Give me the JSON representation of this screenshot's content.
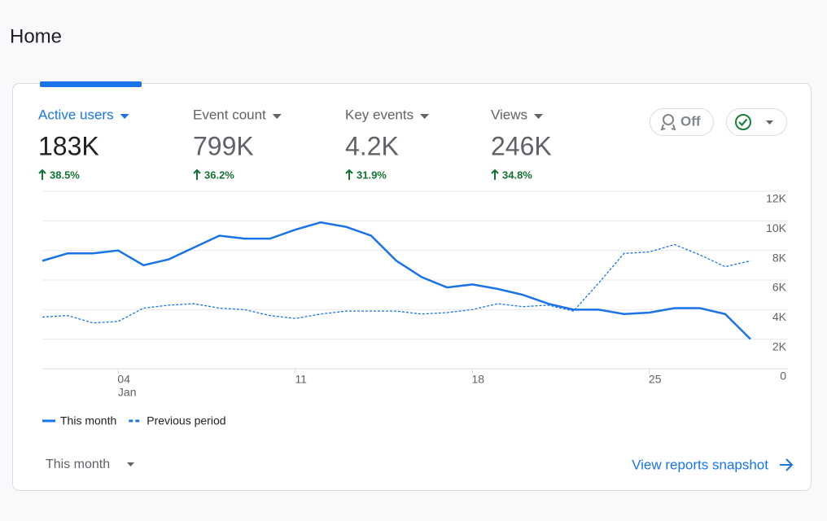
{
  "header": {
    "title": "Home"
  },
  "metrics": [
    {
      "label": "Active users",
      "value": "183K",
      "change": "38.5%"
    },
    {
      "label": "Event count",
      "value": "799K",
      "change": "36.2%"
    },
    {
      "label": "Key events",
      "value": "4.2K",
      "change": "31.9%"
    },
    {
      "label": "Views",
      "value": "246K",
      "change": "34.8%"
    }
  ],
  "chips": {
    "off": "Off"
  },
  "chart_data": {
    "type": "line",
    "x": [
      1,
      2,
      3,
      4,
      5,
      6,
      7,
      8,
      9,
      10,
      11,
      12,
      13,
      14,
      15,
      16,
      17,
      18,
      19,
      20,
      21,
      22,
      23,
      24,
      25,
      26,
      27,
      28,
      29
    ],
    "xlim": [
      1,
      29
    ],
    "xticks": [
      {
        "value": 4,
        "label": "04"
      },
      11,
      18,
      25
    ],
    "x_annotation": "Jan",
    "ylim": [
      0,
      12000
    ],
    "yticks": [
      0,
      {
        "value": 2000,
        "label": "2K"
      },
      {
        "value": 4000,
        "label": "4K"
      },
      {
        "value": 6000,
        "label": "6K"
      },
      {
        "value": 8000,
        "label": "8K"
      },
      {
        "value": 10000,
        "label": "10K"
      },
      {
        "value": 12000,
        "label": "12K"
      }
    ],
    "grid": true,
    "legend": "bottom-left",
    "series": [
      {
        "name": "This month",
        "color": "#1a73e8",
        "dashed": false,
        "values": [
          7300,
          7800,
          7800,
          8000,
          7000,
          7400,
          8200,
          9000,
          8800,
          8800,
          9400,
          9900,
          9600,
          9000,
          7300,
          6200,
          5500,
          5700,
          5400,
          5000,
          4400,
          4000,
          4000,
          3700,
          3800,
          4100,
          4100,
          3700,
          2000
        ]
      },
      {
        "name": "Previous period",
        "color": "#1a73e8",
        "dashed": true,
        "values": [
          3500,
          3600,
          3100,
          3200,
          4100,
          4300,
          4400,
          4100,
          4000,
          3600,
          3400,
          3700,
          3900,
          3900,
          3900,
          3700,
          3800,
          4000,
          4400,
          4200,
          4300,
          3900,
          5800,
          7800,
          7900,
          8400,
          7700,
          6900,
          7300
        ]
      }
    ]
  },
  "footer": {
    "period": "This month",
    "link": "View reports snapshot"
  }
}
